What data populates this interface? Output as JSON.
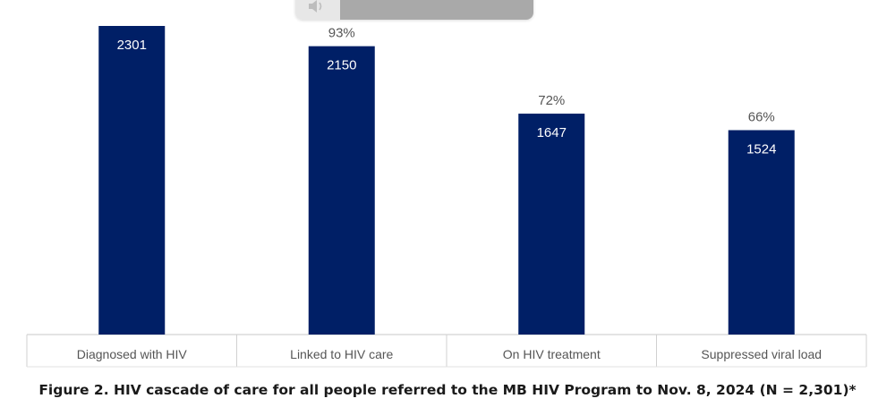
{
  "chart_data": {
    "type": "bar",
    "categories": [
      "Diagnosed with HIV",
      "Linked to HIV care",
      "On HIV treatment",
      "Suppressed viral load"
    ],
    "values": [
      2301,
      2150,
      1647,
      1524
    ],
    "percent_labels": [
      "",
      "93%",
      "72%",
      "66%"
    ],
    "ylim": [
      0,
      2301
    ],
    "grid": false,
    "legend": "none",
    "bar_color": "#001F66",
    "value_label_color": "#ffffff",
    "percent_label_color": "#555555",
    "axis_label_color": "#555555"
  },
  "caption": "Figure 2. HIV cascade of care for all people referred to the MB HIV Program to Nov. 8, 2024 (N = 2,301)*",
  "overlay": {
    "speaker_icon": "speaker-icon"
  }
}
